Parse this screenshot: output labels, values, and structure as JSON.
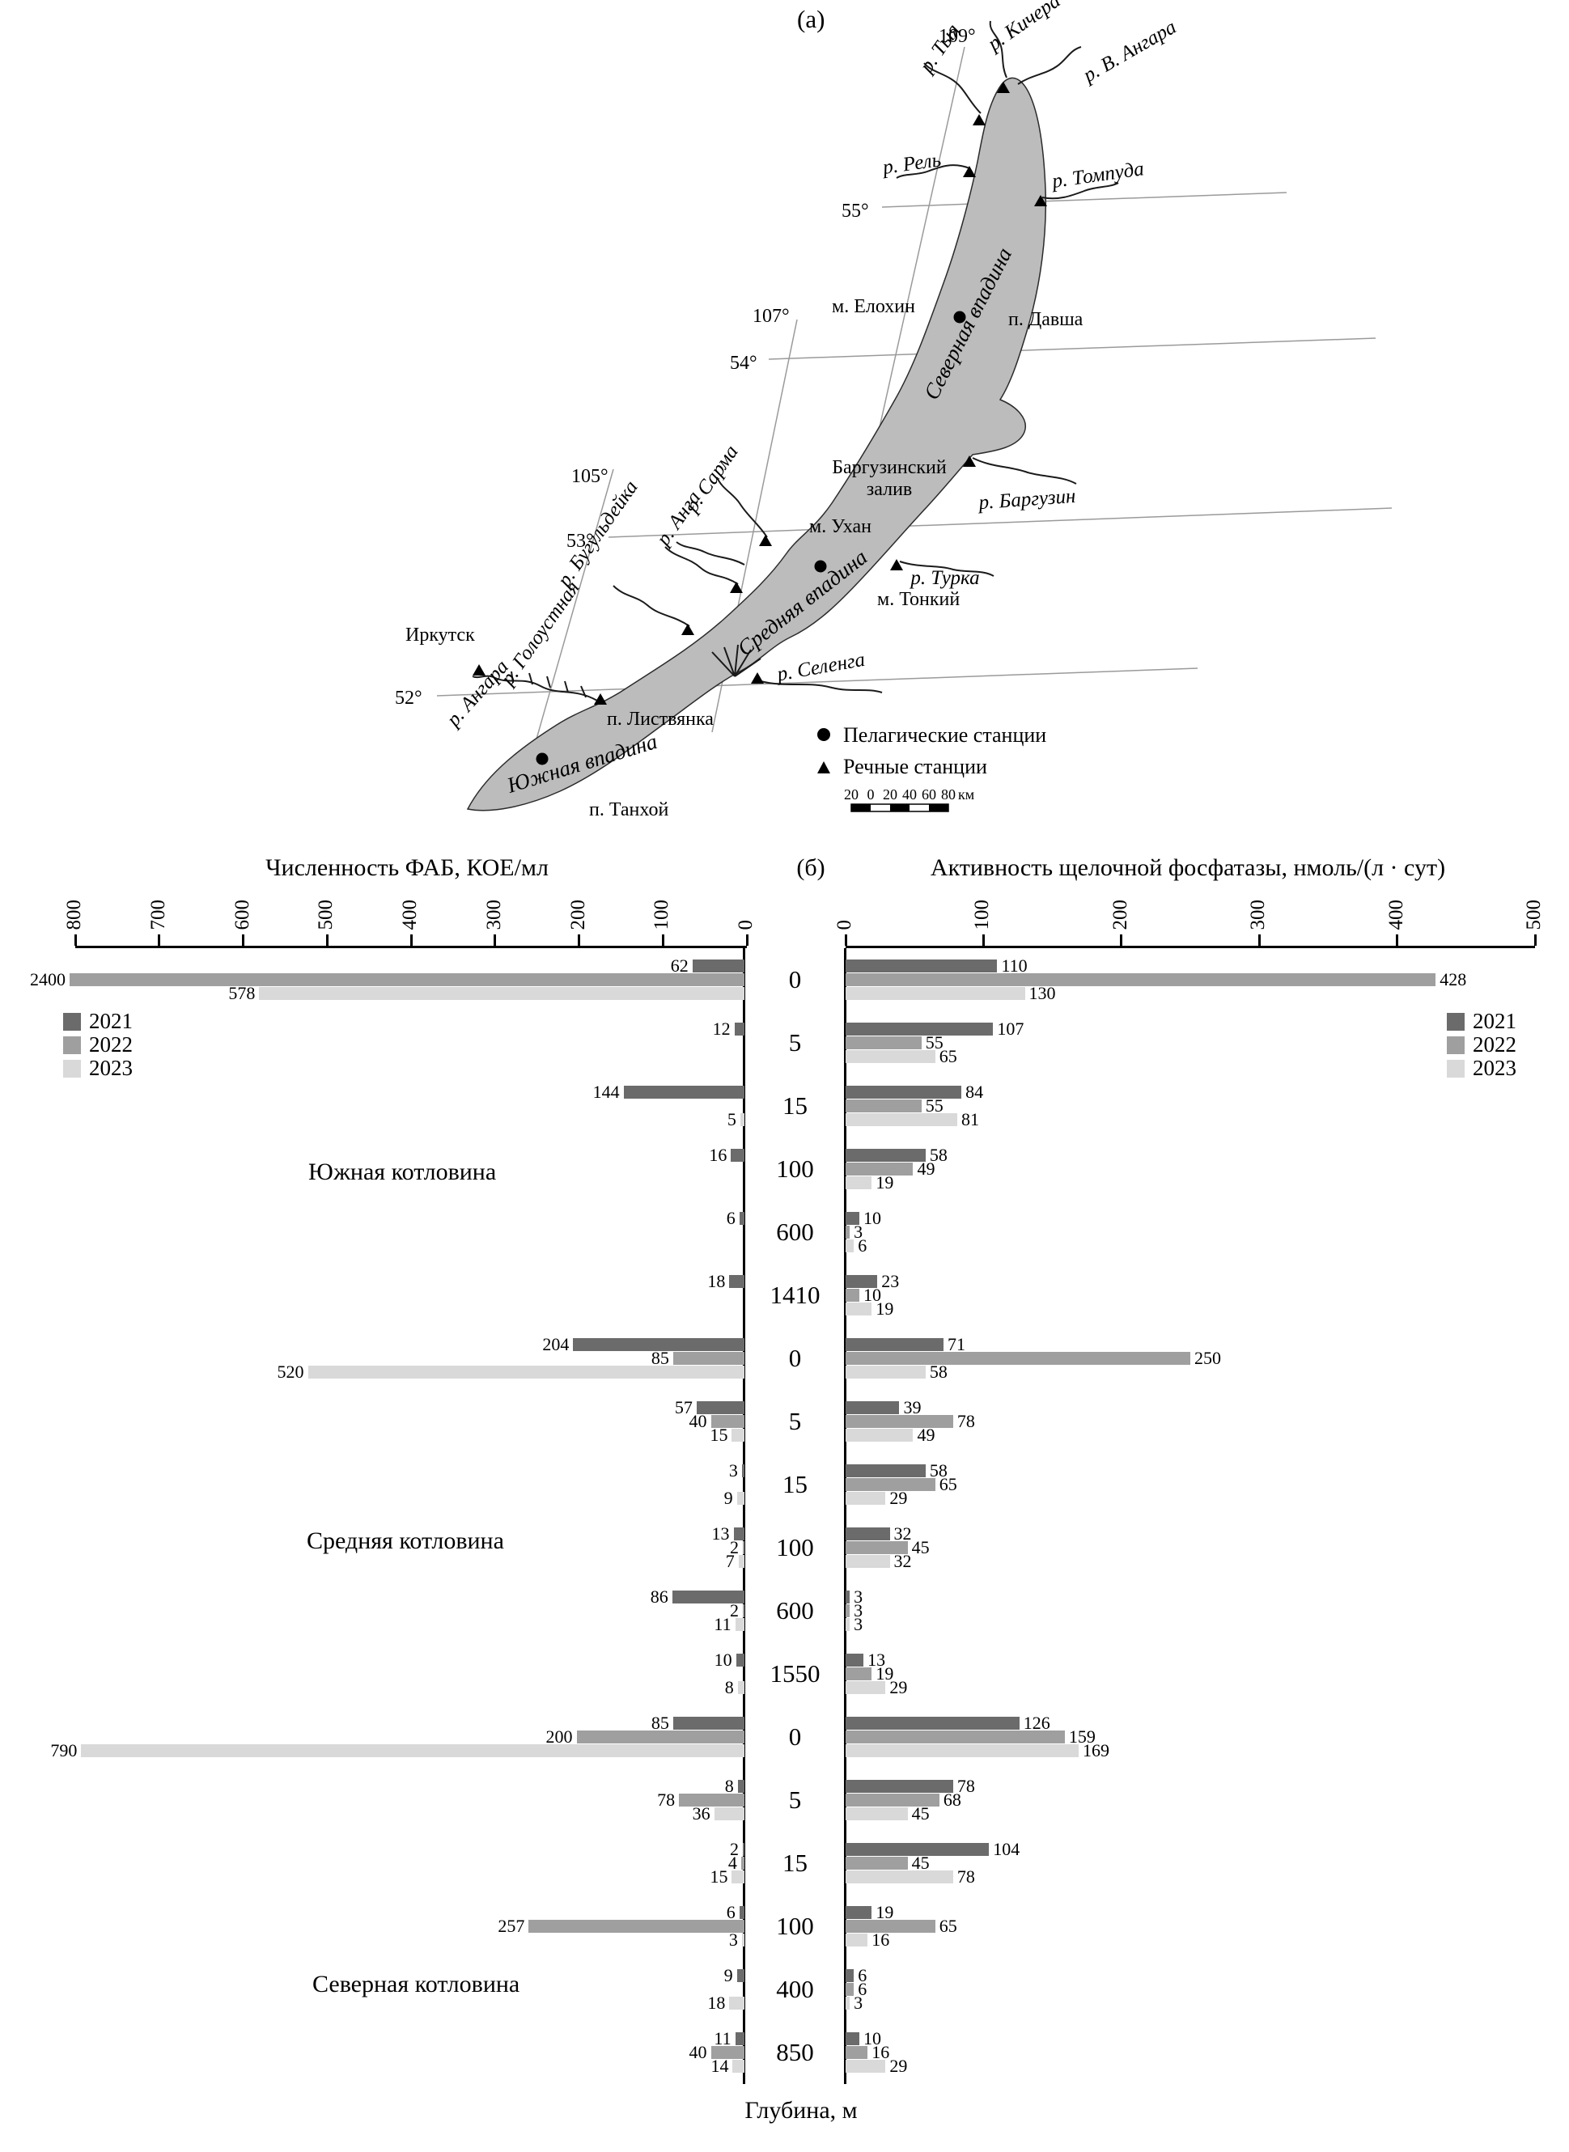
{
  "figure": {
    "panel_a_label": "(а)",
    "panel_b_label": "(б)"
  },
  "map": {
    "lat_55": "55°",
    "lat_54": "54°",
    "lat_53": "53°",
    "lat_52": "52°",
    "lon_105": "105°",
    "lon_107": "107°",
    "lon_109": "109°",
    "river_kichera": "р. Кичера",
    "river_v_angara": "р. В. Ангара",
    "river_tyya": "р. Тыя",
    "river_rel": "р. Рель",
    "river_tompuda": "р. Томпуда",
    "river_barguzin": "р. Баргузин",
    "river_turka": "р. Турка",
    "river_sarma": "р. Сарма",
    "river_anga": "р. Анга",
    "river_buguldeyka": "р. Бугульдейка",
    "river_goloustnaya": "р. Голоустная",
    "river_angara": "р. Ангара",
    "river_selenga": "р. Селенга",
    "place_elokhin": "м. Елохин",
    "place_davsha": "п. Давша",
    "place_barguzin_bay_1": "Баргузинский",
    "place_barguzin_bay_2": "залив",
    "place_ukhan": "м. Ухан",
    "place_tonkiy": "м. Тонкий",
    "place_irkutsk": "Иркутск",
    "place_listvyanka": "п. Листвянка",
    "place_tankhoy": "п. Танхой",
    "basin_north": "Северная впадина",
    "basin_middle": "Средняя впадина",
    "basin_south": "Южная впадина",
    "legend_pelagic": "Пелагические станции",
    "legend_river": "Речные станции",
    "scale_labels": [
      "20",
      "0",
      "20",
      "40",
      "60",
      "80"
    ],
    "scale_unit": "км",
    "colors": {
      "lake_fill": "#bcbcbc",
      "river_label": "#2268a8",
      "graticule": "#9a9a9a"
    }
  },
  "chart_data": {
    "type": "bar",
    "orientation": "paired horizontal (tornado), 3 series per depth",
    "years": [
      "2021",
      "2022",
      "2023"
    ],
    "colors": [
      "#6b6b6b",
      "#9f9f9f",
      "#d9d9d9"
    ],
    "left": {
      "title": "Численность ФАБ, КОЕ/мл",
      "axis_max": 800,
      "ticks": [
        800,
        700,
        600,
        500,
        400,
        300,
        200,
        100,
        0
      ]
    },
    "right": {
      "title": "Активность щелочной фосфатазы, нмоль/(л · сут)",
      "axis_max": 500,
      "ticks": [
        0,
        100,
        200,
        300,
        400,
        500
      ]
    },
    "depth_axis_label": "Глубина, м",
    "sections": [
      {
        "name": "Южная котловина",
        "key": "south",
        "rows": [
          {
            "depth": "0",
            "left": [
              62,
              2400,
              578
            ],
            "right": [
              110,
              428,
              130
            ]
          },
          {
            "depth": "5",
            "left": [
              12,
              null,
              null
            ],
            "right": [
              107,
              55,
              65
            ]
          },
          {
            "depth": "15",
            "left": [
              144,
              null,
              5
            ],
            "right": [
              84,
              55,
              81
            ]
          },
          {
            "depth": "100",
            "left": [
              16,
              null,
              null
            ],
            "right": [
              58,
              49,
              19
            ]
          },
          {
            "depth": "600",
            "left": [
              6,
              null,
              null
            ],
            "right": [
              10,
              3,
              6
            ]
          },
          {
            "depth": "1410",
            "left": [
              18,
              null,
              null
            ],
            "right": [
              23,
              10,
              19
            ]
          }
        ]
      },
      {
        "name": "Средняя котловина",
        "key": "middle",
        "rows": [
          {
            "depth": "0",
            "left": [
              204,
              85,
              520
            ],
            "right": [
              71,
              250,
              58
            ]
          },
          {
            "depth": "5",
            "left": [
              57,
              40,
              15
            ],
            "right": [
              39,
              78,
              49
            ]
          },
          {
            "depth": "15",
            "left": [
              3,
              null,
              9
            ],
            "right": [
              58,
              65,
              29
            ]
          },
          {
            "depth": "100",
            "left": [
              13,
              2,
              7
            ],
            "right": [
              32,
              45,
              32
            ]
          },
          {
            "depth": "600",
            "left": [
              86,
              2,
              11
            ],
            "right": [
              3,
              3,
              3
            ]
          },
          {
            "depth": "1550",
            "left": [
              10,
              null,
              8
            ],
            "right": [
              13,
              19,
              29
            ]
          }
        ]
      },
      {
        "name": "Северная котловина",
        "key": "north",
        "rows": [
          {
            "depth": "0",
            "left": [
              85,
              200,
              790
            ],
            "right": [
              126,
              159,
              169
            ]
          },
          {
            "depth": "5",
            "left": [
              8,
              78,
              36
            ],
            "right": [
              78,
              68,
              45
            ]
          },
          {
            "depth": "15",
            "left": [
              2,
              4,
              15
            ],
            "right": [
              104,
              45,
              78
            ]
          },
          {
            "depth": "100",
            "left": [
              6,
              257,
              3
            ],
            "right": [
              19,
              65,
              16
            ]
          },
          {
            "depth": "400",
            "left": [
              9,
              null,
              18
            ],
            "right": [
              6,
              6,
              3
            ]
          },
          {
            "depth": "850",
            "left": [
              11,
              40,
              14
            ],
            "right": [
              10,
              16,
              29
            ]
          }
        ]
      }
    ]
  }
}
